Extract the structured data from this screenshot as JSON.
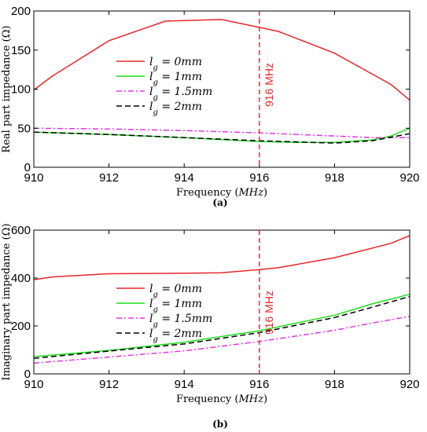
{
  "colors": {
    "red": "#e8262a",
    "green": "#1fdc1f",
    "magenta": "#e833e8",
    "black": "#000000",
    "marker": "#ee2222"
  },
  "chart_data": [
    {
      "type": "line",
      "caption": "(a)",
      "xlabel": "Frequency (MHz)",
      "ylabel": "Real part impedance (Ω)",
      "xlim": [
        910,
        920
      ],
      "ylim": [
        0,
        200
      ],
      "xticks": [
        910,
        912,
        914,
        916,
        918,
        920
      ],
      "yticks": [
        0,
        50,
        100,
        150,
        200
      ],
      "grid": false,
      "legend_position": "center-left",
      "marker_line": {
        "x": 916,
        "label": "916 MHz"
      },
      "series": [
        {
          "name": "lg = 0mm",
          "color": "red",
          "dash": "solid",
          "points": [
            [
              910,
              99
            ],
            [
              910.5,
              117
            ],
            [
              911,
              132
            ],
            [
              912,
              162
            ],
            [
              913.5,
              187
            ],
            [
              915,
              189
            ],
            [
              916,
              179
            ],
            [
              916.5,
              174
            ],
            [
              918,
              146
            ],
            [
              919.5,
              106
            ],
            [
              920,
              86
            ]
          ]
        },
        {
          "name": "lg = 1mm",
          "color": "green",
          "dash": "solid",
          "points": [
            [
              910,
              45
            ],
            [
              912,
              42
            ],
            [
              914,
              38
            ],
            [
              916,
              33
            ],
            [
              917,
              32
            ],
            [
              918,
              32
            ],
            [
              919,
              35
            ],
            [
              919.5,
              40
            ],
            [
              920,
              50
            ]
          ]
        },
        {
          "name": "lg = 1.5mm",
          "color": "magenta",
          "dash": "dashdot",
          "points": [
            [
              910,
              50
            ],
            [
              912,
              49
            ],
            [
              914,
              47
            ],
            [
              916,
              44
            ],
            [
              918,
              40
            ],
            [
              919,
              38
            ],
            [
              920,
              38
            ]
          ]
        },
        {
          "name": "lg = 2mm",
          "color": "black",
          "dash": "dashed",
          "points": [
            [
              910,
              45
            ],
            [
              912,
              42
            ],
            [
              914,
              38
            ],
            [
              916,
              34
            ],
            [
              918,
              31
            ],
            [
              919,
              34
            ],
            [
              920,
              43
            ]
          ]
        }
      ]
    },
    {
      "type": "line",
      "caption": "(b)",
      "xlabel": "Frequency (MHz)",
      "ylabel": "Imaginary part impedance (Ω)",
      "xlim": [
        910,
        920
      ],
      "ylim": [
        0,
        600
      ],
      "xticks": [
        910,
        912,
        914,
        916,
        918,
        920
      ],
      "yticks": [
        0,
        200,
        400,
        600
      ],
      "grid": false,
      "legend_position": "center-left",
      "marker_line": {
        "x": 916,
        "label": "916 MHz"
      },
      "series": [
        {
          "name": "lg = 0mm",
          "color": "red",
          "dash": "solid",
          "points": [
            [
              910,
              393
            ],
            [
              910.5,
              405
            ],
            [
              912,
              418
            ],
            [
              914,
              420
            ],
            [
              915,
              422
            ],
            [
              916,
              435
            ],
            [
              916.5,
              443
            ],
            [
              918,
              485
            ],
            [
              919.5,
              545
            ],
            [
              920,
              577
            ]
          ]
        },
        {
          "name": "lg = 1mm",
          "color": "green",
          "dash": "solid",
          "points": [
            [
              910,
              72
            ],
            [
              912,
              98
            ],
            [
              914,
              132
            ],
            [
              916,
              180
            ],
            [
              918,
              245
            ],
            [
              919,
              292
            ],
            [
              920,
              332
            ]
          ]
        },
        {
          "name": "lg = 1.5mm",
          "color": "magenta",
          "dash": "dashdot",
          "points": [
            [
              910,
              45
            ],
            [
              912,
              70
            ],
            [
              914,
              96
            ],
            [
              916,
              135
            ],
            [
              918,
              182
            ],
            [
              919,
              212
            ],
            [
              920,
              240
            ]
          ]
        },
        {
          "name": "lg = 2mm",
          "color": "black",
          "dash": "dashed",
          "points": [
            [
              910,
              65
            ],
            [
              912,
              95
            ],
            [
              914,
              125
            ],
            [
              916,
              172
            ],
            [
              918,
              235
            ],
            [
              919,
              278
            ],
            [
              920,
              323
            ]
          ]
        }
      ]
    }
  ]
}
